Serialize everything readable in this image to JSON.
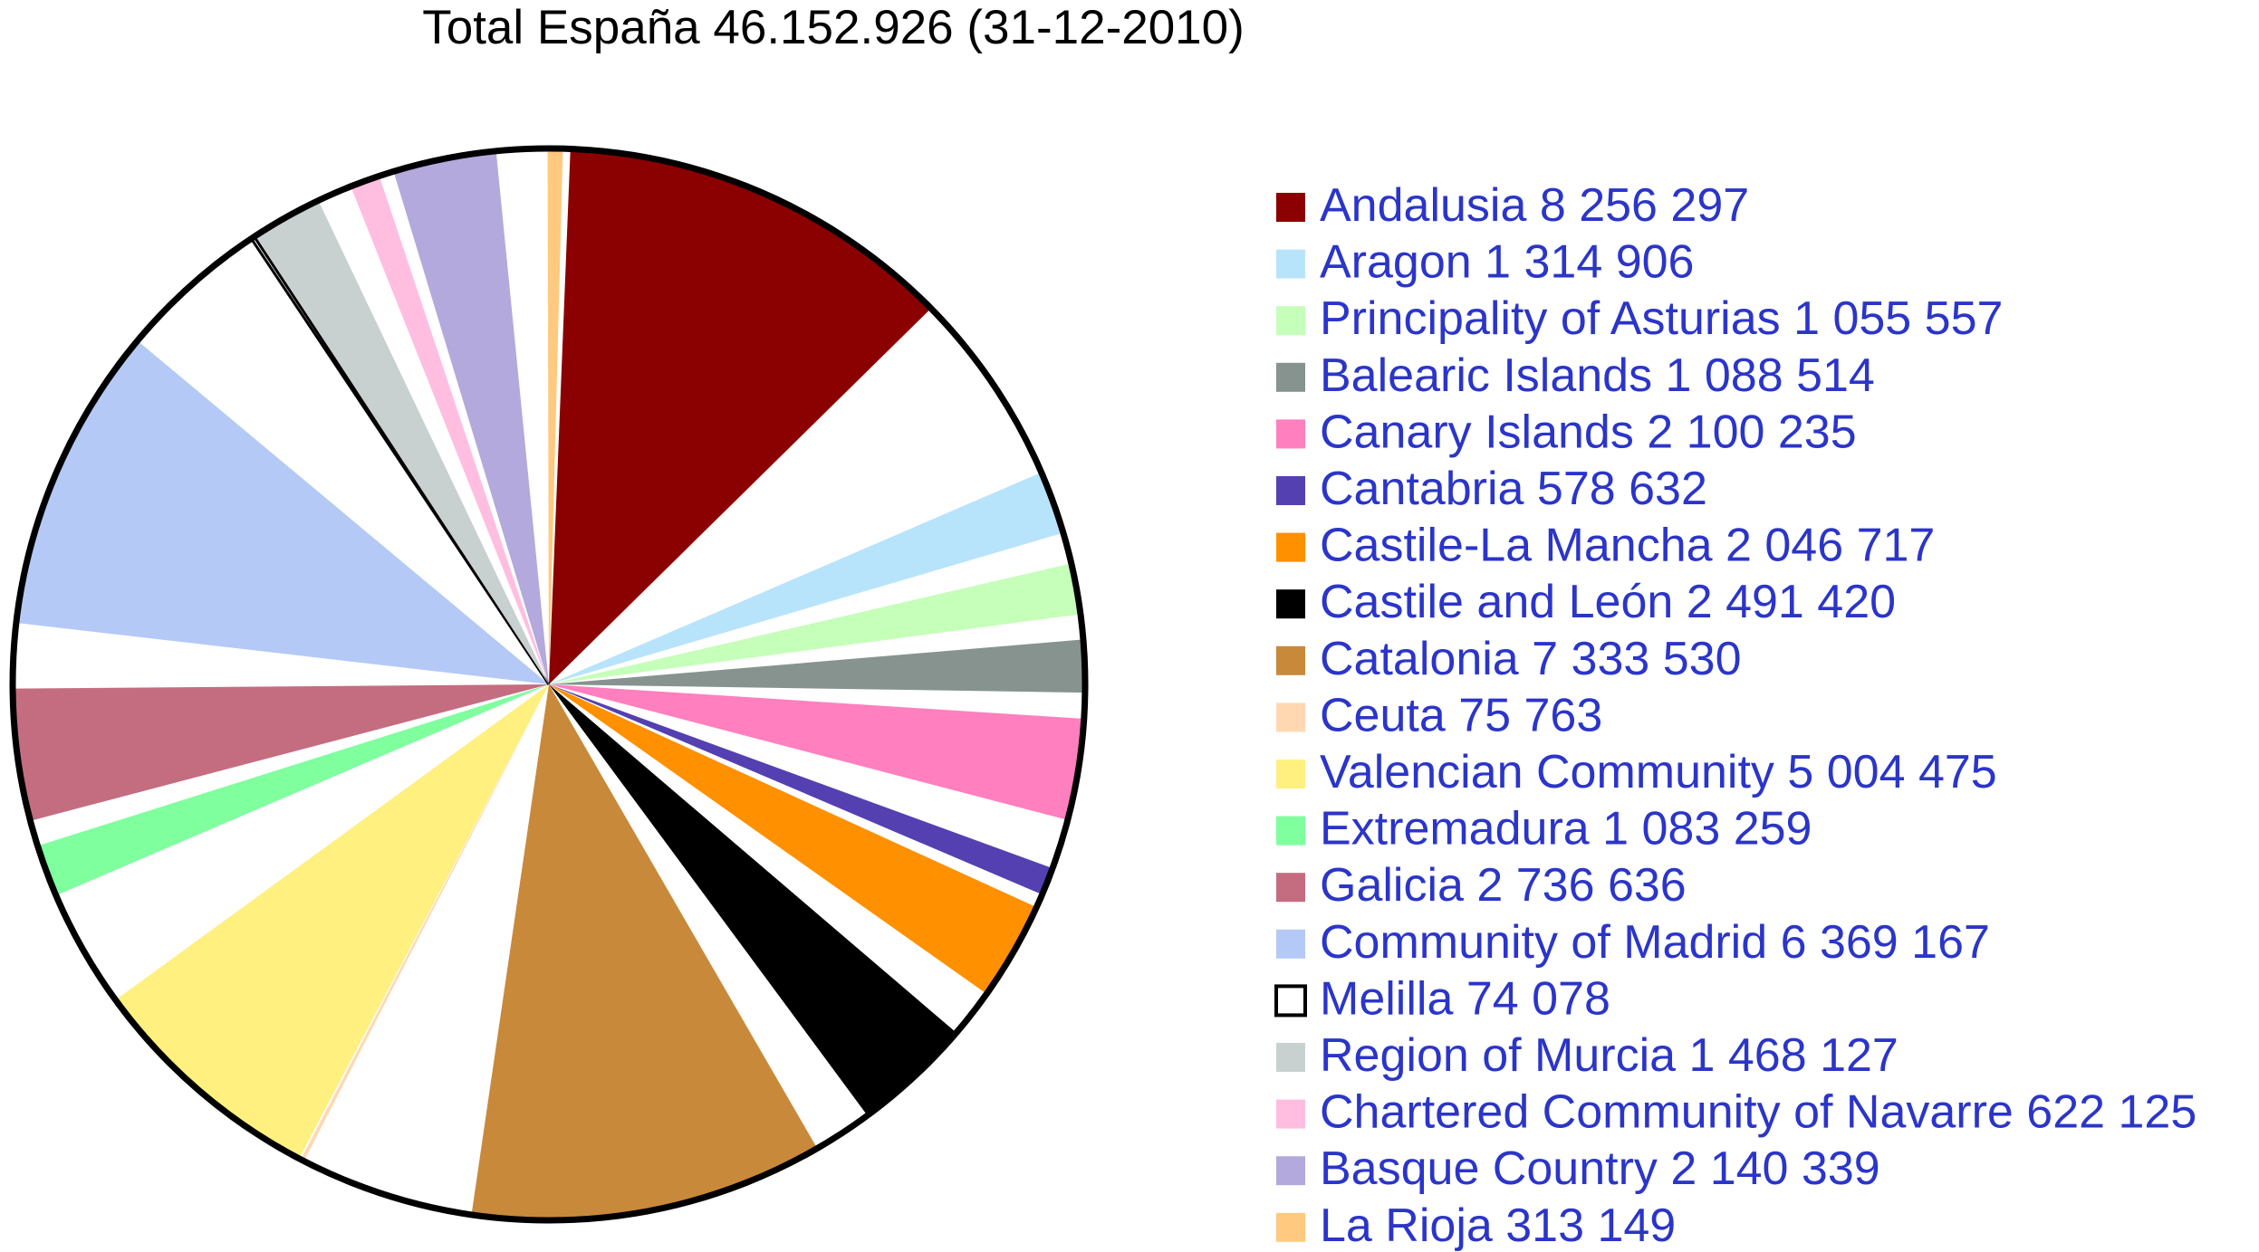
{
  "chart_data": {
    "type": "pie",
    "title": "Total España 46.152.926 (31-12-2010)",
    "legend_position": "right",
    "label_color": "#2b35c9",
    "outline_color": "#000000",
    "slices": [
      {
        "label": "Andalusia 8 256 297",
        "value": 8256297,
        "color": "#8b0000"
      },
      {
        "label": "Aragon 1 314 906",
        "value": 1314906,
        "color": "#b8e4fb"
      },
      {
        "label": "Principality of Asturias 1 055 557",
        "value": 1055557,
        "color": "#c5ffb9"
      },
      {
        "label": "Balearic Islands 1 088 514",
        "value": 1088514,
        "color": "#86938f"
      },
      {
        "label": "Canary Islands 2 100 235",
        "value": 2100235,
        "color": "#ff7fbf"
      },
      {
        "label": "Cantabria 578 632",
        "value": 578632,
        "color": "#5440b0"
      },
      {
        "label": "Castile-La Mancha 2 046 717",
        "value": 2046717,
        "color": "#ff9000"
      },
      {
        "label": "Castile and León 2 491 420",
        "value": 2491420,
        "color": "#000000"
      },
      {
        "label": "Catalonia 7 333 530",
        "value": 7333530,
        "color": "#c9893a"
      },
      {
        "label": "Ceuta 75 763",
        "value": 75763,
        "color": "#ffd8b2"
      },
      {
        "label": "Valencian Community 5 004 475",
        "value": 5004475,
        "color": "#fff07f"
      },
      {
        "label": "Extremadura 1 083 259",
        "value": 1083259,
        "color": "#7fff9e"
      },
      {
        "label": "Galicia 2 736 636",
        "value": 2736636,
        "color": "#c46d80"
      },
      {
        "label": "Community of Madrid 6 369 167",
        "value": 6369167,
        "color": "#b4c9f6"
      },
      {
        "label": "Melilla 74 078",
        "value": 74078,
        "color": "#ffffff"
      },
      {
        "label": "Region of Murcia 1 468 127",
        "value": 1468127,
        "color": "#c8d1cf"
      },
      {
        "label": "Chartered Community of Navarre 622 125",
        "value": 622125,
        "color": "#ffbee0"
      },
      {
        "label": "Basque Country 2 140 339",
        "value": 2140339,
        "color": "#b3a9dc"
      },
      {
        "label": "La Rioja 313 149",
        "value": 313149,
        "color": "#ffc97f"
      }
    ]
  }
}
